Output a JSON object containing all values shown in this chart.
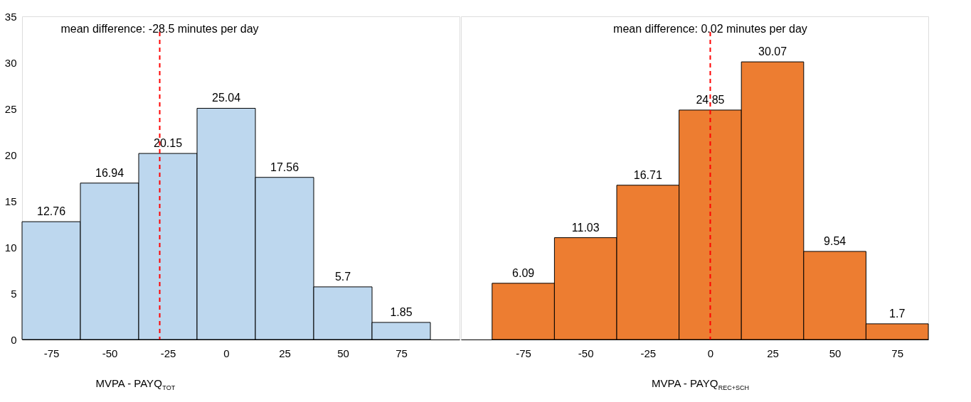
{
  "chart_data": [
    {
      "type": "histogram",
      "bins": [
        -87.5,
        -62.5,
        -37.5,
        -12.5,
        12.5,
        37.5,
        62.5,
        87.5
      ],
      "values": [
        12.76,
        16.94,
        20.15,
        25.04,
        17.56,
        5.7,
        1.85
      ],
      "color": "#bdd7ee",
      "xlim": [
        -87.5,
        100
      ],
      "xticks": [
        -75,
        -50,
        -25,
        0,
        25,
        50,
        75
      ],
      "ylim": [
        0,
        35
      ],
      "yticks": [
        0,
        5,
        10,
        15,
        20,
        25,
        30,
        35
      ],
      "xlabel": "MVPA  - PAYQ$_{TOT}$",
      "data_labels": true,
      "ref_lines": [
        {
          "axis": "x",
          "value": -28.5,
          "label": "mean difference: -28.5 minutes per day",
          "color": "#ff0000",
          "line_style": "dashed"
        }
      ]
    },
    {
      "type": "histogram",
      "bins": [
        -87.5,
        -62.5,
        -37.5,
        -12.5,
        12.5,
        37.5,
        62.5,
        87.5
      ],
      "values": [
        6.09,
        11.03,
        16.71,
        24.85,
        30.07,
        9.54,
        1.7
      ],
      "color": "#ed7d31",
      "xlim": [
        -100,
        87.5
      ],
      "xticks": [
        -75,
        -50,
        -25,
        0,
        25,
        50,
        75
      ],
      "ylim": [
        0,
        35
      ],
      "tick_labels": "x",
      "xlabel": "MVPA - PAYQ$_{REC+SCH}$",
      "data_labels": true,
      "ref_lines": [
        {
          "axis": "x",
          "value": 0.02,
          "label": "mean difference: 0.02 minutes per day",
          "color": "#ff0000",
          "line_style": "dashed"
        }
      ]
    }
  ]
}
